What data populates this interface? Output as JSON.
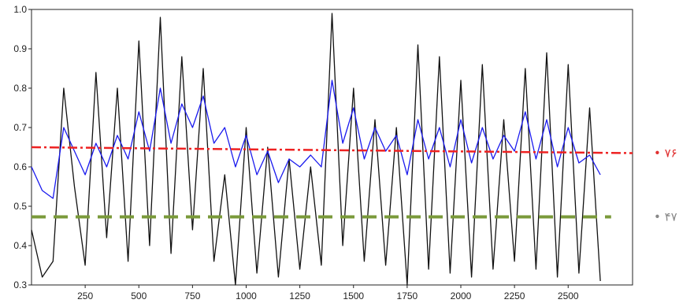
{
  "chart_data": {
    "type": "line",
    "title": "",
    "xlabel": "",
    "ylabel": "",
    "xlim": [
      0,
      2800
    ],
    "ylim": [
      0.3,
      1.0
    ],
    "x_ticks": [
      250,
      500,
      750,
      1000,
      1250,
      1500,
      1750,
      2000,
      2250,
      2500
    ],
    "y_ticks": [
      0.3,
      0.4,
      0.5,
      0.6,
      0.7,
      0.8,
      0.9,
      1.0
    ],
    "x_tick_labels": [
      "250",
      "500",
      "750",
      "1000",
      "1250",
      "1500",
      "1750",
      "2000",
      "2250",
      "2500"
    ],
    "y_tick_labels": [
      "0.3",
      "0.4",
      "0.5",
      "0.6",
      "0.7",
      "0.8",
      "0.9",
      "1.0"
    ],
    "grid": false,
    "series": [
      {
        "color": "#111111",
        "x": [
          0,
          50,
          100,
          150,
          200,
          250,
          300,
          350,
          400,
          450,
          500,
          550,
          600,
          650,
          700,
          750,
          800,
          850,
          900,
          950,
          1000,
          1050,
          1100,
          1150,
          1200,
          1250,
          1300,
          1350,
          1400,
          1450,
          1500,
          1550,
          1600,
          1650,
          1700,
          1750,
          1800,
          1850,
          1900,
          1950,
          2000,
          2050,
          2100,
          2150,
          2200,
          2250,
          2300,
          2350,
          2400,
          2450,
          2500,
          2550,
          2600,
          2650
        ],
        "y": [
          0.44,
          0.32,
          0.36,
          0.8,
          0.55,
          0.35,
          0.84,
          0.42,
          0.8,
          0.36,
          0.92,
          0.4,
          0.98,
          0.38,
          0.88,
          0.44,
          0.85,
          0.36,
          0.58,
          0.3,
          0.7,
          0.33,
          0.65,
          0.32,
          0.62,
          0.34,
          0.6,
          0.35,
          0.99,
          0.4,
          0.8,
          0.36,
          0.72,
          0.35,
          0.7,
          0.3,
          0.91,
          0.34,
          0.88,
          0.33,
          0.82,
          0.32,
          0.86,
          0.34,
          0.72,
          0.36,
          0.85,
          0.34,
          0.89,
          0.32,
          0.86,
          0.33,
          0.75,
          0.31
        ]
      },
      {
        "color": "#1a1aee",
        "x": [
          0,
          50,
          100,
          150,
          200,
          250,
          300,
          350,
          400,
          450,
          500,
          550,
          600,
          650,
          700,
          750,
          800,
          850,
          900,
          950,
          1000,
          1050,
          1100,
          1150,
          1200,
          1250,
          1300,
          1350,
          1400,
          1450,
          1500,
          1550,
          1600,
          1650,
          1700,
          1750,
          1800,
          1850,
          1900,
          1950,
          2000,
          2050,
          2100,
          2150,
          2200,
          2250,
          2300,
          2350,
          2400,
          2450,
          2500,
          2550,
          2600,
          2650
        ],
        "y": [
          0.6,
          0.54,
          0.52,
          0.7,
          0.64,
          0.58,
          0.66,
          0.6,
          0.68,
          0.62,
          0.74,
          0.64,
          0.8,
          0.66,
          0.76,
          0.7,
          0.78,
          0.66,
          0.7,
          0.6,
          0.68,
          0.58,
          0.64,
          0.56,
          0.62,
          0.6,
          0.63,
          0.6,
          0.82,
          0.66,
          0.75,
          0.62,
          0.7,
          0.64,
          0.68,
          0.58,
          0.72,
          0.62,
          0.7,
          0.6,
          0.72,
          0.61,
          0.7,
          0.62,
          0.68,
          0.64,
          0.74,
          0.62,
          0.72,
          0.6,
          0.7,
          0.61,
          0.63,
          0.58
        ]
      },
      {
        "color": "#ee2222",
        "style": "dashdot",
        "x": [
          0,
          2800
        ],
        "y": [
          0.65,
          0.635
        ]
      },
      {
        "color": "#7a9a3a",
        "style": "dashed",
        "x": [
          0,
          2700
        ],
        "y": [
          0.473,
          0.473
        ]
      }
    ],
    "side_labels": [
      {
        "text": "• ۷۶",
        "color": "#e03030",
        "y": 0.635
      },
      {
        "text": "• ۴۷",
        "color": "#888888",
        "y": 0.473
      }
    ]
  }
}
